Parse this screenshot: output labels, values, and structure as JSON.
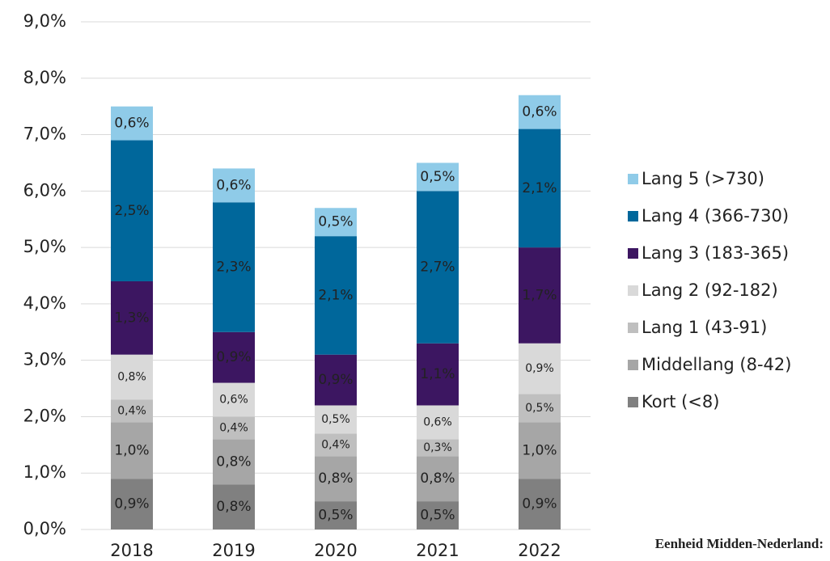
{
  "chart_data": {
    "type": "stacked_bar",
    "categories": [
      "2018",
      "2019",
      "2020",
      "2021",
      "2022"
    ],
    "series": [
      {
        "name": "Kort (<8)",
        "color": "#808080",
        "label_color": "#ffffff",
        "values": [
          0.9,
          0.8,
          0.5,
          0.5,
          0.9
        ],
        "value_labels": [
          "0,9%",
          "0,8%",
          "0,5%",
          "0,5%",
          "0,9%"
        ]
      },
      {
        "name": "Middellang (8-42)",
        "color": "#a6a6a6",
        "label_color": "#ffffff",
        "values": [
          1.0,
          0.8,
          0.8,
          0.8,
          1.0
        ],
        "value_labels": [
          "1,0%",
          "0,8%",
          "0,8%",
          "0,8%",
          "1,0%"
        ]
      },
      {
        "name": "Lang 1 (43-91)",
        "color": "#bfbfbf",
        "label_color": "#333333",
        "values": [
          0.4,
          0.4,
          0.4,
          0.3,
          0.5
        ],
        "value_labels": [
          "0,4%",
          "0,4%",
          "0,4%",
          "0,3%",
          "0,5%"
        ]
      },
      {
        "name": "Lang 2 (92-182)",
        "color": "#d9d9d9",
        "label_color": "#333333",
        "values": [
          0.8,
          0.6,
          0.5,
          0.6,
          0.9
        ],
        "value_labels": [
          "0,8%",
          "0,6%",
          "0,5%",
          "0,6%",
          "0,9%"
        ]
      },
      {
        "name": "Lang 3 (183-365)",
        "color": "#3c1661",
        "label_color": "#ffffff",
        "values": [
          1.3,
          0.9,
          0.9,
          1.1,
          1.7
        ],
        "value_labels": [
          "1,3%",
          "0,9%",
          "0,9%",
          "1,1%",
          "1,7%"
        ]
      },
      {
        "name": "Lang 4 (366-730)",
        "color": "#00679b",
        "label_color": "#ffffff",
        "values": [
          2.5,
          2.3,
          2.1,
          2.7,
          2.1
        ],
        "value_labels": [
          "2,5%",
          "2,3%",
          "2,1%",
          "2,7%",
          "2,1%"
        ]
      },
      {
        "name": "Lang 5 (>730)",
        "color": "#8fcbe8",
        "label_color": "#1f6fb0",
        "values": [
          0.6,
          0.6,
          0.5,
          0.5,
          0.6
        ],
        "value_labels": [
          "0,6%",
          "0,6%",
          "0,5%",
          "0,5%",
          "0,6%"
        ]
      }
    ],
    "ylim": [
      0,
      9
    ],
    "yticks": [
      {
        "value": 0,
        "label": "0,0%"
      },
      {
        "value": 1,
        "label": "1,0%"
      },
      {
        "value": 2,
        "label": "2,0%"
      },
      {
        "value": 3,
        "label": "3,0%"
      },
      {
        "value": 4,
        "label": "4,0%"
      },
      {
        "value": 5,
        "label": "5,0%"
      },
      {
        "value": 6,
        "label": "6,0%"
      },
      {
        "value": 7,
        "label": "7,0%"
      },
      {
        "value": 8,
        "label": "8,0%"
      },
      {
        "value": 9,
        "label": "9,0%"
      }
    ],
    "grid": true,
    "legend": "right",
    "note": "Eenheid Midden-Nederland:"
  }
}
